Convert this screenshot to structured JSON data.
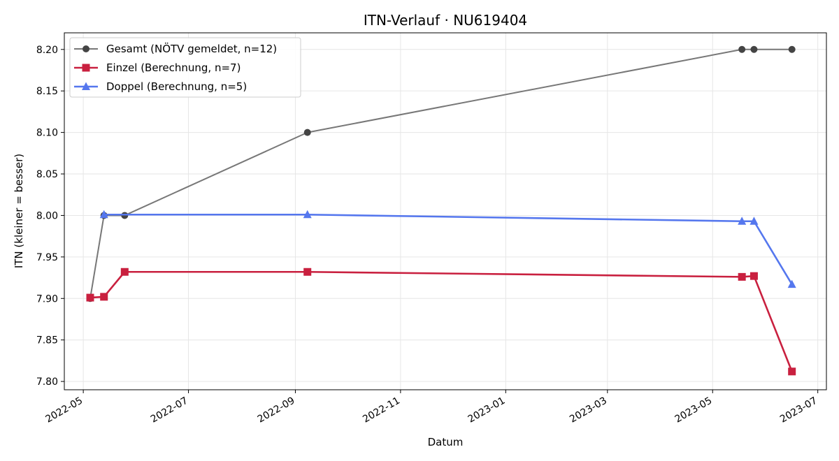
{
  "chart_data": {
    "type": "line",
    "title": "ITN-Verlauf · NU619404",
    "xlabel": "Datum",
    "ylabel": "ITN  (kleiner = besser)",
    "xlim": [
      "2022-04-20",
      "2023-07-06"
    ],
    "ylim": [
      7.79,
      8.22
    ],
    "x_ticks": [
      "2022-05",
      "2022-07",
      "2022-09",
      "2022-11",
      "2023-01",
      "2023-03",
      "2023-05",
      "2023-07"
    ],
    "y_ticks": [
      "7.80",
      "7.85",
      "7.90",
      "7.95",
      "8.00",
      "8.05",
      "8.10",
      "8.15",
      "8.20"
    ],
    "grid": true,
    "legend_position": "top-left",
    "series": [
      {
        "name": "Gesamt (NÖTV gemeldet, n=12)",
        "color": "#777777",
        "marker_color": "#444444",
        "marker": "circle",
        "points": [
          {
            "x": "2022-05-05",
            "y": 7.9
          },
          {
            "x": "2022-05-13",
            "y": 8.0
          },
          {
            "x": "2022-05-25",
            "y": 8.0
          },
          {
            "x": "2022-09-08",
            "y": 8.1
          },
          {
            "x": "2023-05-18",
            "y": 8.2
          },
          {
            "x": "2023-05-25",
            "y": 8.2
          },
          {
            "x": "2023-06-16",
            "y": 8.2
          }
        ]
      },
      {
        "name": "Einzel (Berechnung, n=7)",
        "color": "#c9203f",
        "marker_color": "#c9203f",
        "marker": "square",
        "points": [
          {
            "x": "2022-05-05",
            "y": 7.901
          },
          {
            "x": "2022-05-13",
            "y": 7.902
          },
          {
            "x": "2022-05-25",
            "y": 7.932
          },
          {
            "x": "2022-09-08",
            "y": 7.932
          },
          {
            "x": "2023-05-18",
            "y": 7.926
          },
          {
            "x": "2023-05-25",
            "y": 7.927
          },
          {
            "x": "2023-06-16",
            "y": 7.812
          }
        ]
      },
      {
        "name": "Doppel (Berechnung, n=5)",
        "color": "#5577ee",
        "marker_color": "#5577ee",
        "marker": "triangle",
        "points": [
          {
            "x": "2022-05-13",
            "y": 8.001
          },
          {
            "x": "2022-09-08",
            "y": 8.001
          },
          {
            "x": "2023-05-18",
            "y": 7.993
          },
          {
            "x": "2023-05-25",
            "y": 7.993
          },
          {
            "x": "2023-06-16",
            "y": 7.917
          }
        ]
      }
    ]
  }
}
